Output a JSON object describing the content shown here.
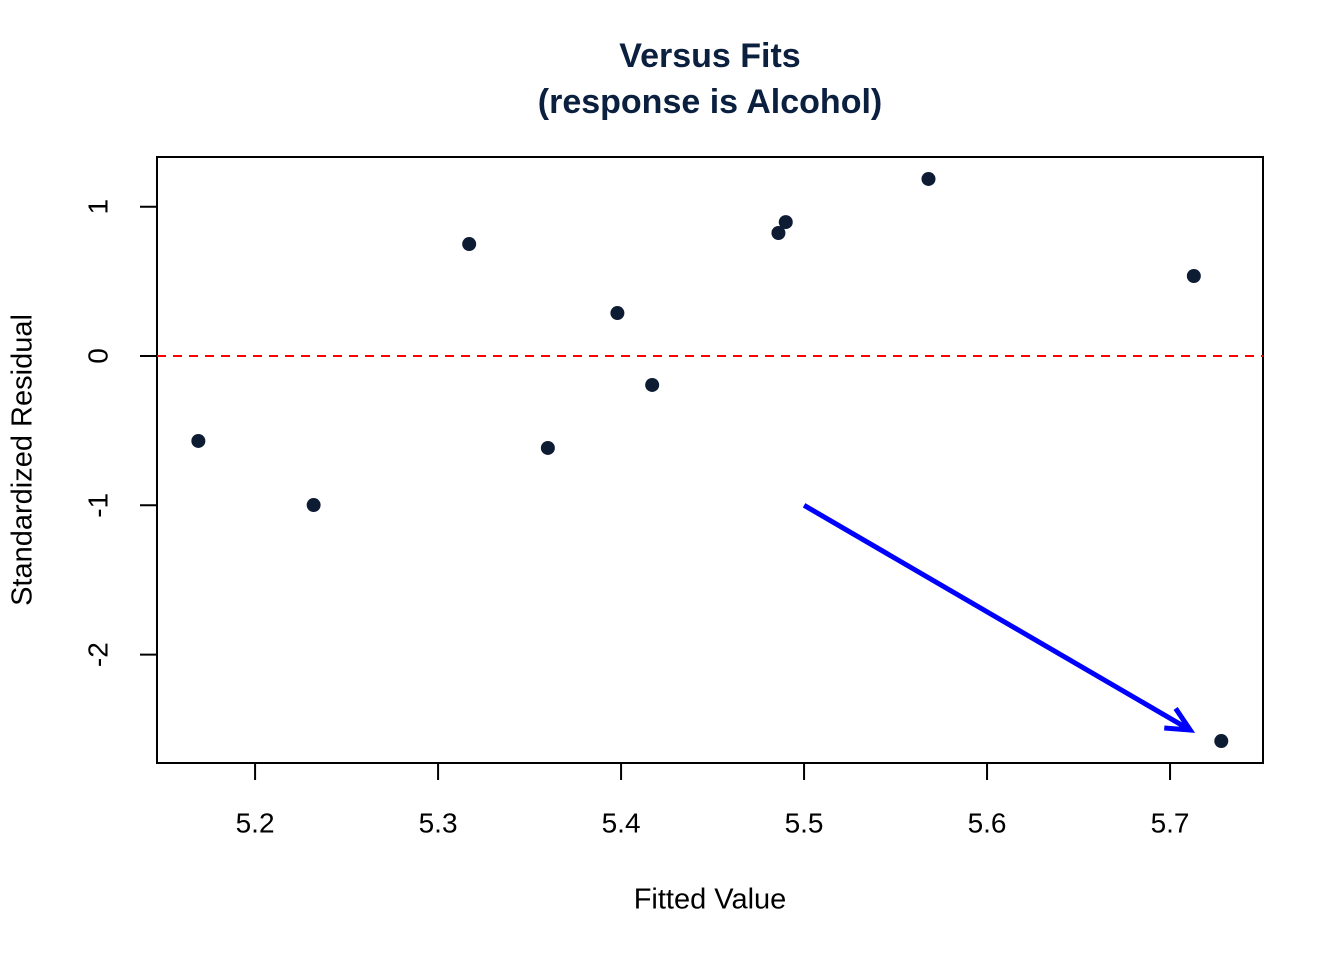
{
  "chart_data": {
    "type": "scatter",
    "title": "Versus Fits",
    "subtitle": "(response is Alcohol)",
    "x_label": "Fitted Value",
    "y_label": "Standardized Residual",
    "x": [
      5.169,
      5.232,
      5.317,
      5.36,
      5.398,
      5.417,
      5.486,
      5.49,
      5.568,
      5.713,
      5.728
    ],
    "values": [
      -0.569,
      -0.998,
      0.75,
      -0.616,
      0.288,
      -0.194,
      0.824,
      0.897,
      1.186,
      0.536,
      -2.579
    ],
    "color": "#0d1b33",
    "xlim": [
      5.1464,
      5.7508
    ],
    "ylim": [
      -2.726,
      1.333
    ],
    "xticks": [
      5.2,
      5.3,
      5.4,
      5.5,
      5.6,
      5.7
    ],
    "yticks": [
      -2,
      -1,
      0,
      1
    ],
    "reference_line": {
      "y": 0,
      "color": "#ff0000"
    },
    "arrow": {
      "x0": 5.5,
      "y0": -1,
      "x1": 5.711,
      "y1": -2.505,
      "color": "#0000ff"
    }
  }
}
